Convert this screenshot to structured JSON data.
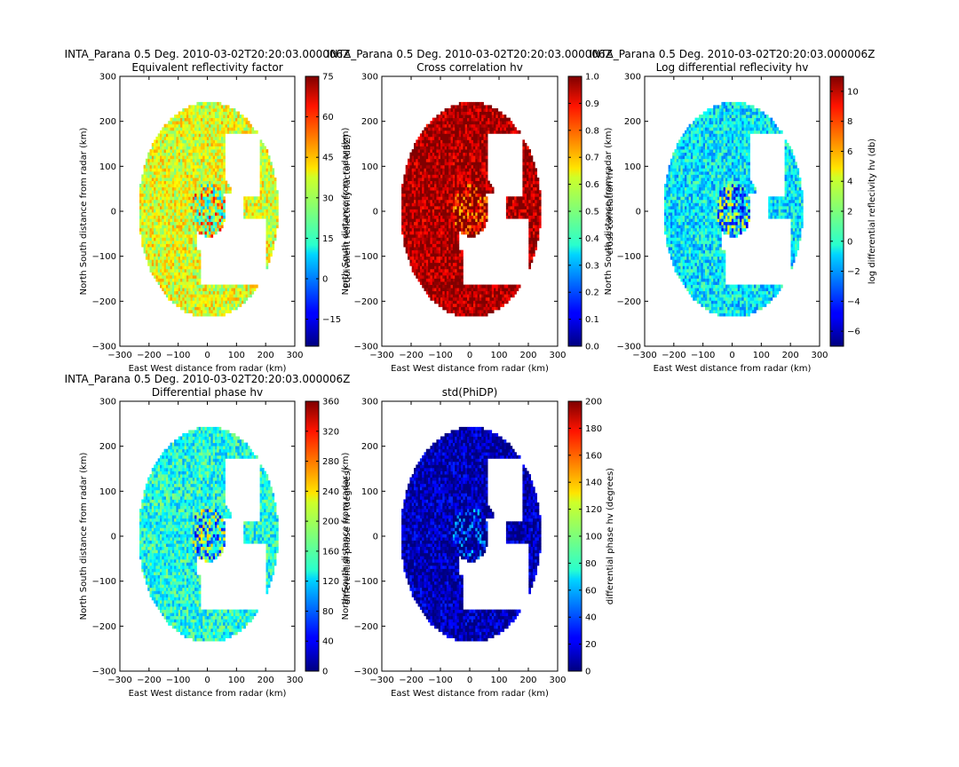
{
  "figure": {
    "background": "#ffffff"
  },
  "colormap": "jet",
  "axes": {
    "xlabel": "East West distance from radar (km)",
    "ylabel": "North South distance from radar (km)",
    "xticks": [
      "−300",
      "−200",
      "−100",
      "0",
      "100",
      "200",
      "300"
    ],
    "yticks": [
      "300",
      "200",
      "100",
      "0",
      "−100",
      "−200",
      "−300"
    ]
  },
  "chart_data": [
    {
      "type": "heatmap",
      "title": "INTA_Parana 0.5 Deg. 2010-03-02T20:20:03.000006Z",
      "subtitle": "Equivalent reflectivity factor",
      "xlim": [
        -300,
        300
      ],
      "ylim": [
        -300,
        300
      ],
      "colorbar": {
        "label": "Equivalent reflectivity factor (dBZ)",
        "range": [
          -25,
          75
        ],
        "ticks": [
          "−15",
          "0",
          "15",
          "30",
          "45",
          "60",
          "75"
        ]
      },
      "coverage_radius_km": 240,
      "dominant_value": 35
    },
    {
      "type": "heatmap",
      "title": "INTA_Parana 0.5 Deg. 2010-03-02T20:20:03.000006Z",
      "subtitle": "Cross correlation hv",
      "xlim": [
        -300,
        300
      ],
      "ylim": [
        -300,
        300
      ],
      "colorbar": {
        "label": "cross correlation hv",
        "range": [
          0,
          1
        ],
        "ticks": [
          "0.0",
          "0.1",
          "0.2",
          "0.3",
          "0.4",
          "0.5",
          "0.6",
          "0.7",
          "0.8",
          "0.9",
          "1.0"
        ]
      },
      "coverage_radius_km": 240,
      "dominant_value": 0.97
    },
    {
      "type": "heatmap",
      "title": "INTA_Parana 0.5 Deg. 2010-03-02T20:20:03.000006Z",
      "subtitle": "Log differential reflecivity hv",
      "xlim": [
        -300,
        300
      ],
      "ylim": [
        -300,
        300
      ],
      "colorbar": {
        "label": "log differential reflecivity hv (db)",
        "range": [
          -7,
          11
        ],
        "ticks": [
          "−6",
          "−4",
          "−2",
          "0",
          "2",
          "4",
          "6",
          "8",
          "10"
        ]
      },
      "coverage_radius_km": 240,
      "dominant_value": -0.5
    },
    {
      "type": "heatmap",
      "title": "INTA_Parana 0.5 Deg. 2010-03-02T20:20:03.000006Z",
      "subtitle": "Differential phase hv",
      "xlim": [
        -300,
        300
      ],
      "ylim": [
        -300,
        300
      ],
      "colorbar": {
        "label": "differential phase hv (degrees)",
        "range": [
          0,
          360
        ],
        "ticks": [
          "0",
          "40",
          "80",
          "120",
          "160",
          "200",
          "240",
          "280",
          "320",
          "360"
        ]
      },
      "coverage_radius_km": 240,
      "dominant_value": 145
    },
    {
      "type": "heatmap",
      "title": "",
      "subtitle": "std(PhiDP)",
      "xlim": [
        -300,
        300
      ],
      "ylim": [
        -300,
        300
      ],
      "colorbar": {
        "label": "differential phase hv (degrees)",
        "range": [
          0,
          200
        ],
        "ticks": [
          "0",
          "20",
          "40",
          "60",
          "80",
          "100",
          "120",
          "140",
          "160",
          "180",
          "200"
        ]
      },
      "coverage_radius_km": 240,
      "dominant_value": 8
    }
  ]
}
